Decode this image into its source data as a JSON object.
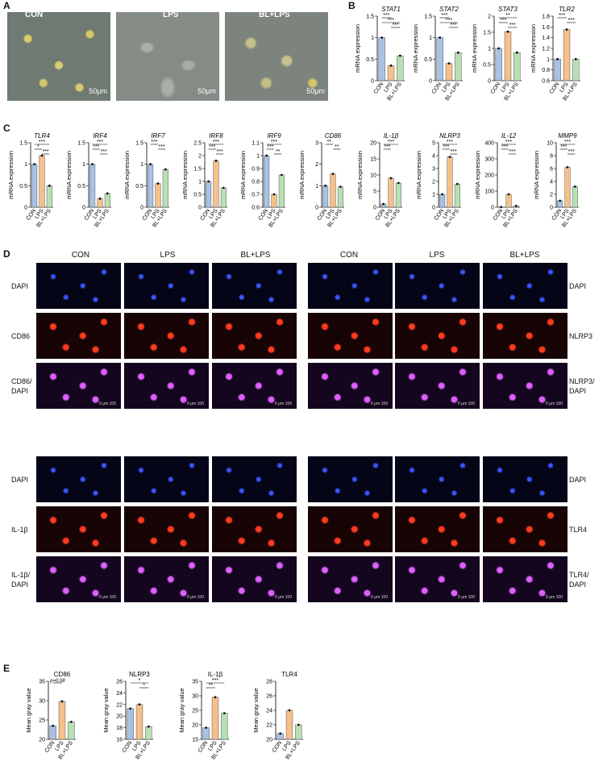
{
  "panels": {
    "A": "A",
    "B": "B",
    "C": "C",
    "D": "D",
    "E": "E"
  },
  "panel_a": {
    "groups": [
      "CON",
      "LPS",
      "BL+LPS"
    ],
    "scale_bar": "50μm"
  },
  "panel_d": {
    "columns": [
      "CON",
      "LPS",
      "BL+LPS"
    ],
    "left_rows_top": [
      "DAPI",
      "CD86",
      "CD86/\nDAPI"
    ],
    "right_rows_top": [
      "DAPI",
      "NLRP3",
      "NLRP3/\nDAPI"
    ],
    "left_rows_bottom": [
      "DAPI",
      "IL-1β",
      "IL-1β/\nDAPI"
    ],
    "right_rows_bottom": [
      "DAPI",
      "TLR4",
      "TLR4/\nDAPI"
    ],
    "scale_text": "0  μm  100"
  },
  "chart_data": [
    {
      "panel": "B",
      "type": "bar",
      "title": "STAT1",
      "italic": true,
      "ylabel": "mRNA expression",
      "categories": [
        "CON",
        "LPS",
        "BL+LPS"
      ],
      "values": [
        1.0,
        0.35,
        0.58
      ],
      "ylim": [
        0,
        1.5
      ],
      "yticks": [
        0.0,
        0.5,
        1.0,
        1.5
      ],
      "sig": [
        {
          "a": 0,
          "b": 1,
          "t": "***"
        },
        {
          "a": 0,
          "b": 2,
          "t": "***"
        },
        {
          "a": 1,
          "b": 2,
          "t": "***"
        }
      ]
    },
    {
      "panel": "B",
      "type": "bar",
      "title": "STAT2",
      "italic": true,
      "ylabel": "mRNA expression",
      "categories": [
        "CON",
        "LPS",
        "BL+LPS"
      ],
      "values": [
        1.0,
        0.4,
        0.65
      ],
      "ylim": [
        0,
        1.5
      ],
      "yticks": [
        0.0,
        0.5,
        1.0,
        1.5
      ],
      "sig": [
        {
          "a": 0,
          "b": 1,
          "t": "***"
        },
        {
          "a": 0,
          "b": 2,
          "t": "***"
        },
        {
          "a": 1,
          "b": 2,
          "t": "***"
        }
      ]
    },
    {
      "panel": "B",
      "type": "bar",
      "title": "STAT3",
      "italic": true,
      "ylabel": "mRNA expression",
      "categories": [
        "CON",
        "LPS",
        "BL+LPS"
      ],
      "values": [
        1.0,
        1.52,
        0.87
      ],
      "ylim": [
        0,
        2.0
      ],
      "yticks": [
        0.0,
        0.5,
        1.0,
        1.5,
        2.0
      ],
      "sig": [
        {
          "a": 0,
          "b": 2,
          "t": "**"
        },
        {
          "a": 0,
          "b": 1,
          "t": "***"
        },
        {
          "a": 1,
          "b": 2,
          "t": "***"
        }
      ]
    },
    {
      "panel": "B",
      "type": "bar",
      "title": "TLR2",
      "italic": true,
      "ylabel": "mRNA expression",
      "categories": [
        "CON",
        "LPS",
        "BL+LPS"
      ],
      "values": [
        1.0,
        1.55,
        1.0
      ],
      "ylim": [
        0.6,
        1.8
      ],
      "yticks": [
        0.6,
        0.8,
        1.0,
        1.2,
        1.4,
        1.6,
        1.8
      ],
      "sig": [
        {
          "a": 0,
          "b": 1,
          "t": "***"
        },
        {
          "a": 1,
          "b": 2,
          "t": "***"
        }
      ]
    },
    {
      "panel": "C",
      "type": "bar",
      "title": "TLR4",
      "italic": true,
      "ylabel": "mRNA expression",
      "categories": [
        "CON",
        "LPS",
        "BL+LPS"
      ],
      "values": [
        1.0,
        1.2,
        0.5
      ],
      "ylim": [
        0,
        1.5
      ],
      "yticks": [
        0.0,
        0.5,
        1.0,
        1.5
      ],
      "sig": [
        {
          "a": 0,
          "b": 2,
          "t": "***"
        },
        {
          "a": 0,
          "b": 1,
          "t": "*"
        },
        {
          "a": 1,
          "b": 2,
          "t": "***"
        }
      ]
    },
    {
      "panel": "C",
      "type": "bar",
      "title": "IRF4",
      "italic": true,
      "ylabel": "mRNA expression",
      "categories": [
        "CON",
        "LPS",
        "BL+LPS"
      ],
      "values": [
        1.0,
        0.2,
        0.32
      ],
      "ylim": [
        0,
        1.5
      ],
      "yticks": [
        0.0,
        0.5,
        1.0,
        1.5
      ],
      "sig": [
        {
          "a": 0,
          "b": 2,
          "t": "***"
        },
        {
          "a": 0,
          "b": 1,
          "t": "***"
        },
        {
          "a": 1,
          "b": 2,
          "t": "***"
        }
      ]
    },
    {
      "panel": "C",
      "type": "bar",
      "title": "IRF7",
      "italic": true,
      "ylabel": "mRNA expression",
      "categories": [
        "CON",
        "LPS",
        "BL+LPS"
      ],
      "values": [
        1.0,
        0.55,
        0.88
      ],
      "ylim": [
        0,
        1.5
      ],
      "yticks": [
        0.0,
        0.5,
        1.0,
        1.5
      ],
      "sig": [
        {
          "a": 0,
          "b": 1,
          "t": "***"
        },
        {
          "a": 1,
          "b": 2,
          "t": "***"
        }
      ]
    },
    {
      "panel": "C",
      "type": "bar",
      "title": "IRF8",
      "italic": true,
      "ylabel": "mRNA expression",
      "categories": [
        "CON",
        "LPS",
        "BL+LPS"
      ],
      "values": [
        1.0,
        1.8,
        0.75
      ],
      "ylim": [
        0,
        2.5
      ],
      "yticks": [
        0.0,
        0.5,
        1.0,
        1.5,
        2.0,
        2.5
      ],
      "sig": [
        {
          "a": 0,
          "b": 2,
          "t": "***"
        },
        {
          "a": 0,
          "b": 1,
          "t": "***"
        },
        {
          "a": 1,
          "b": 2,
          "t": "***"
        }
      ]
    },
    {
      "panel": "C",
      "type": "bar",
      "title": "IRF9",
      "italic": true,
      "ylabel": "mRNA expression",
      "categories": [
        "CON",
        "LPS",
        "BL+LPS"
      ],
      "values": [
        1.0,
        0.7,
        0.85
      ],
      "ylim": [
        0.6,
        1.1
      ],
      "yticks": [
        0.6,
        0.7,
        0.8,
        0.9,
        1.0,
        1.1
      ],
      "sig": [
        {
          "a": 0,
          "b": 2,
          "t": "***"
        },
        {
          "a": 0,
          "b": 1,
          "t": "***"
        },
        {
          "a": 1,
          "b": 2,
          "t": "**"
        }
      ]
    },
    {
      "panel": "C",
      "type": "bar",
      "title": "CD86",
      "italic": true,
      "ylabel": "mRNA expression",
      "categories": [
        "CON",
        "LPS",
        "BL+LPS"
      ],
      "values": [
        1.0,
        1.55,
        0.95
      ],
      "ylim": [
        0,
        3
      ],
      "yticks": [
        0,
        1,
        2,
        3
      ],
      "sig": [
        {
          "a": 0,
          "b": 1,
          "t": "**"
        },
        {
          "a": 1,
          "b": 2,
          "t": "**"
        }
      ]
    },
    {
      "panel": "C",
      "type": "bar",
      "title": "IL-1β",
      "italic": true,
      "ylabel": "mRNA expression",
      "categories": [
        "CON",
        "LPS",
        "BL+LPS"
      ],
      "values": [
        1.0,
        9.0,
        7.5
      ],
      "ylim": [
        0,
        20
      ],
      "yticks": [
        0,
        5,
        10,
        15,
        20
      ],
      "sig": [
        {
          "a": 0,
          "b": 2,
          "t": "***"
        },
        {
          "a": 0,
          "b": 1,
          "t": "***"
        }
      ]
    },
    {
      "panel": "C",
      "type": "bar",
      "title": "NLRP3",
      "italic": true,
      "ylabel": "mRNA expression",
      "categories": [
        "CON",
        "LPS",
        "BL+LPS"
      ],
      "values": [
        1.0,
        3.9,
        1.8
      ],
      "ylim": [
        0,
        5
      ],
      "yticks": [
        0,
        1,
        2,
        3,
        4,
        5
      ],
      "sig": [
        {
          "a": 0,
          "b": 2,
          "t": "***"
        },
        {
          "a": 0,
          "b": 1,
          "t": "***"
        },
        {
          "a": 1,
          "b": 2,
          "t": "***"
        }
      ]
    },
    {
      "panel": "C",
      "type": "bar",
      "title": "IL-12",
      "italic": true,
      "ylabel": "mRNA expression",
      "categories": [
        "CON",
        "LPS",
        "BL+LPS"
      ],
      "values": [
        1.0,
        80,
        8
      ],
      "ylim": [
        0,
        400
      ],
      "yticks": [
        0,
        100,
        200,
        300,
        400
      ],
      "sig": [
        {
          "a": 0,
          "b": 2,
          "t": "***"
        },
        {
          "a": 0,
          "b": 1,
          "t": "***"
        },
        {
          "a": 1,
          "b": 2,
          "t": "***"
        }
      ]
    },
    {
      "panel": "C",
      "type": "bar",
      "title": "MMP9",
      "italic": true,
      "ylabel": "mRNA expression",
      "categories": [
        "CON",
        "LPS",
        "BL+LPS"
      ],
      "values": [
        1.0,
        6.2,
        3.2
      ],
      "ylim": [
        0,
        10
      ],
      "yticks": [
        0,
        2,
        4,
        6,
        8,
        10
      ],
      "sig": [
        {
          "a": 0,
          "b": 2,
          "t": "***"
        },
        {
          "a": 0,
          "b": 1,
          "t": "***"
        },
        {
          "a": 1,
          "b": 2,
          "t": "***"
        }
      ]
    },
    {
      "panel": "E",
      "type": "bar",
      "title": "CD86",
      "italic": false,
      "ylabel": "Mean gray value",
      "categories": [
        "CON",
        "LPS",
        "BL+LPS"
      ],
      "values": [
        23.5,
        29.8,
        24.5
      ],
      "ylim": [
        20,
        35
      ],
      "yticks": [
        20,
        25,
        30,
        35
      ],
      "sig": [
        {
          "a": 0,
          "b": 1,
          "t": "p=0.08"
        }
      ]
    },
    {
      "panel": "E",
      "type": "bar",
      "title": "NLRP3",
      "italic": false,
      "ylabel": "Mean gray value",
      "categories": [
        "CON",
        "LPS",
        "BL+LPS"
      ],
      "values": [
        21.3,
        22.0,
        18.2
      ],
      "ylim": [
        16,
        26
      ],
      "yticks": [
        16,
        18,
        20,
        22,
        24,
        26
      ],
      "sig": [
        {
          "a": 0,
          "b": 2,
          "t": "*"
        },
        {
          "a": 1,
          "b": 2,
          "t": "*"
        }
      ]
    },
    {
      "panel": "E",
      "type": "bar",
      "title": "IL-1β",
      "italic": false,
      "ylabel": "Mean gray value",
      "categories": [
        "CON",
        "LPS",
        "BL+LPS"
      ],
      "values": [
        19.0,
        29.5,
        24.0
      ],
      "ylim": [
        15,
        35
      ],
      "yticks": [
        15,
        20,
        25,
        30,
        35
      ],
      "sig": [
        {
          "a": 0,
          "b": 2,
          "t": "***"
        },
        {
          "a": 0,
          "b": 1,
          "t": "**"
        }
      ]
    },
    {
      "panel": "E",
      "type": "bar",
      "title": "TLR4",
      "italic": false,
      "ylabel": "Mean gray value",
      "categories": [
        "CON",
        "LPS",
        "BL+LPS"
      ],
      "values": [
        20.8,
        24.0,
        22.0
      ],
      "ylim": [
        20,
        28
      ],
      "yticks": [
        20,
        22,
        24,
        26,
        28
      ],
      "sig": []
    }
  ],
  "colors": {
    "CON": "#a9c1e3",
    "LPS": "#f5c08a",
    "BL+LPS": "#b9e0b4"
  }
}
